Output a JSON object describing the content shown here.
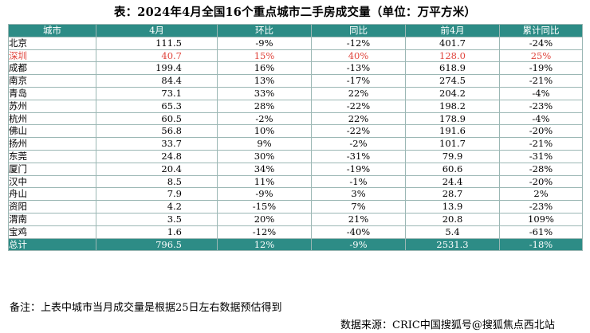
{
  "title": "表：2024年4月全国16个重点城市二手房成交量（单位：万平方米）",
  "columns": [
    "城市",
    "4月",
    "环比",
    "同比",
    "前4月",
    "累计同比"
  ],
  "rows": [
    {
      "city": "北京",
      "apr": "111.5",
      "mom": "-9%",
      "yoy": "-12%",
      "ytd": "401.7",
      "ytd_yoy": "-24%"
    },
    {
      "city": "深圳",
      "apr": "40.7",
      "mom": "15%",
      "yoy": "40%",
      "ytd": "128.0",
      "ytd_yoy": "25%"
    },
    {
      "city": "成都",
      "apr": "199.4",
      "mom": "16%",
      "yoy": "-13%",
      "ytd": "618.9",
      "ytd_yoy": "-19%"
    },
    {
      "city": "南京",
      "apr": "84.4",
      "mom": "13%",
      "yoy": "-17%",
      "ytd": "274.5",
      "ytd_yoy": "-21%"
    },
    {
      "city": "青岛",
      "apr": "73.1",
      "mom": "33%",
      "yoy": "22%",
      "ytd": "204.2",
      "ytd_yoy": "-4%"
    },
    {
      "city": "苏州",
      "apr": "65.3",
      "mom": "28%",
      "yoy": "-22%",
      "ytd": "198.2",
      "ytd_yoy": "-23%"
    },
    {
      "city": "杭州",
      "apr": "60.5",
      "mom": "-2%",
      "yoy": "22%",
      "ytd": "178.9",
      "ytd_yoy": "-4%"
    },
    {
      "city": "佛山",
      "apr": "56.8",
      "mom": "10%",
      "yoy": "-22%",
      "ytd": "191.6",
      "ytd_yoy": "-20%"
    },
    {
      "city": "扬州",
      "apr": "33.7",
      "mom": "9%",
      "yoy": "-2%",
      "ytd": "101.7",
      "ytd_yoy": "-21%"
    },
    {
      "city": "东莞",
      "apr": "24.8",
      "mom": "30%",
      "yoy": "-31%",
      "ytd": "79.9",
      "ytd_yoy": "-31%"
    },
    {
      "city": "厦门",
      "apr": "20.4",
      "mom": "34%",
      "yoy": "-19%",
      "ytd": "60.6",
      "ytd_yoy": "-28%"
    },
    {
      "city": "汉中",
      "apr": "8.5",
      "mom": "11%",
      "yoy": "-1%",
      "ytd": "24.4",
      "ytd_yoy": "-20%"
    },
    {
      "city": "舟山",
      "apr": "7.9",
      "mom": "-9%",
      "yoy": "3%",
      "ytd": "28.7",
      "ytd_yoy": "2%"
    },
    {
      "city": "资阳",
      "apr": "4.2",
      "mom": "-15%",
      "yoy": "7%",
      "ytd": "13.9",
      "ytd_yoy": "-23%"
    },
    {
      "city": "渭南",
      "apr": "3.5",
      "mom": "20%",
      "yoy": "21%",
      "ytd": "20.8",
      "ytd_yoy": "109%"
    },
    {
      "city": "宝鸡",
      "apr": "1.6",
      "mom": "-12%",
      "yoy": "-40%",
      "ytd": "5.4",
      "ytd_yoy": "-61%"
    }
  ],
  "total": {
    "city": "总计",
    "apr": "796.5",
    "mom": "12%",
    "yoy": "-9%",
    "ytd": "2531.3",
    "ytd_yoy": "-18%"
  },
  "note": "备注：上表中城市当月成交量是根据25日左右数据预估得到",
  "source": "数据来源：CRIC中国搜狐号@搜狐焦点西北站",
  "colors": {
    "header_bg": "#2d8c86",
    "header_text": "#ffffff",
    "highlight": "#e0443c"
  }
}
